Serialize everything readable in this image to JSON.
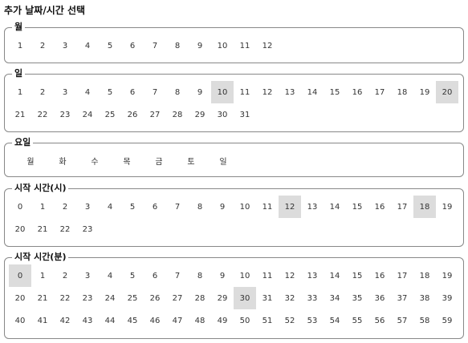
{
  "title": "추가 날짜/시간 선택",
  "selected_color": "#dcdcdc",
  "month": {
    "legend": "월",
    "values": [
      "1",
      "2",
      "3",
      "4",
      "5",
      "6",
      "7",
      "8",
      "9",
      "10",
      "11",
      "12"
    ],
    "selected": []
  },
  "day": {
    "legend": "일",
    "values": [
      "1",
      "2",
      "3",
      "4",
      "5",
      "6",
      "7",
      "8",
      "9",
      "10",
      "11",
      "12",
      "13",
      "14",
      "15",
      "16",
      "17",
      "18",
      "19",
      "20",
      "21",
      "22",
      "23",
      "24",
      "25",
      "26",
      "27",
      "28",
      "29",
      "30",
      "31"
    ],
    "selected": [
      "10",
      "20"
    ]
  },
  "weekday": {
    "legend": "요일",
    "values": [
      "월",
      "화",
      "수",
      "목",
      "금",
      "토",
      "일"
    ],
    "selected": []
  },
  "start_hour": {
    "legend": "시작 시간(시)",
    "values": [
      "0",
      "1",
      "2",
      "3",
      "4",
      "5",
      "6",
      "7",
      "8",
      "9",
      "10",
      "11",
      "12",
      "13",
      "14",
      "15",
      "16",
      "17",
      "18",
      "19",
      "20",
      "21",
      "22",
      "23"
    ],
    "selected": [
      "12",
      "18"
    ]
  },
  "start_minute": {
    "legend": "시작 시간(분)",
    "values": [
      "0",
      "1",
      "2",
      "3",
      "4",
      "5",
      "6",
      "7",
      "8",
      "9",
      "10",
      "11",
      "12",
      "13",
      "14",
      "15",
      "16",
      "17",
      "18",
      "19",
      "20",
      "21",
      "22",
      "23",
      "24",
      "25",
      "26",
      "27",
      "28",
      "29",
      "30",
      "31",
      "32",
      "33",
      "34",
      "35",
      "36",
      "37",
      "38",
      "39",
      "40",
      "41",
      "42",
      "43",
      "44",
      "45",
      "46",
      "47",
      "48",
      "49",
      "50",
      "51",
      "52",
      "53",
      "54",
      "55",
      "56",
      "57",
      "58",
      "59"
    ],
    "selected": [
      "0",
      "30"
    ]
  }
}
